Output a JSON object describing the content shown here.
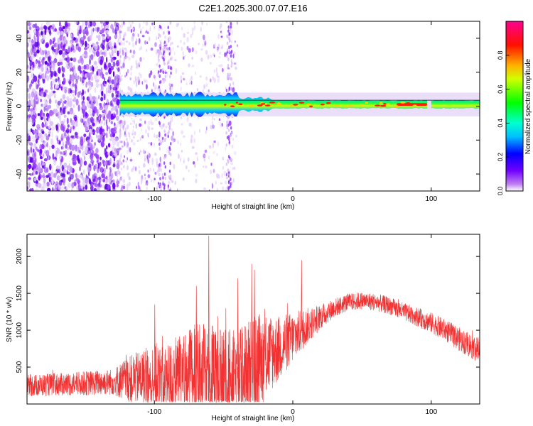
{
  "figure": {
    "title": "C2E1.2025.300.07.07.E16"
  },
  "chart_data": [
    {
      "type": "heatmap",
      "title": "C2E1.2025.300.07.07.E16",
      "xlabel": "Height of straight line (km)",
      "ylabel": "Frequency (Hz)",
      "xlim": [
        -192,
        135
      ],
      "ylim": [
        -50,
        50
      ],
      "xticks": [
        -100,
        0,
        100
      ],
      "yticks": [
        -40,
        -20,
        0,
        20,
        40
      ],
      "grid": false,
      "colorbar": {
        "label": "Normalized spectral amplitude",
        "range": [
          0.0,
          1.0
        ],
        "ticks": [
          0.0,
          0.2,
          0.4,
          0.6,
          0.8
        ],
        "colormap": "gist_rainbow (purple→blue→cyan→green→yellow→orange→red→magenta)"
      },
      "features": {
        "noise_region_x": [
          -192,
          -125
        ],
        "scattered_noise_x": [
          -125,
          -40
        ],
        "band_start_x": -125,
        "band_center_hz": 1,
        "band_halfwidth_hz": 3,
        "horizontal_line_hz": 3.5,
        "gap_x": [
          97,
          100
        ],
        "peak_amplitude_segment_x": [
          75,
          97
        ]
      }
    },
    {
      "type": "line",
      "xlabel": "Height of straight line (km)",
      "ylabel": "SNR (10 * v/v)",
      "xlim": [
        -192,
        135
      ],
      "ylim": [
        0,
        2300
      ],
      "xticks": [
        -100,
        0,
        100
      ],
      "yticks": [
        500,
        1000,
        1500,
        2000
      ],
      "series_color": "#f03232",
      "envelope": {
        "x": [
          -192,
          -160,
          -130,
          -120,
          -100,
          -90,
          -70,
          -60,
          -40,
          -30,
          -20,
          -10,
          0,
          10,
          20,
          30,
          40,
          50,
          60,
          70,
          80,
          90,
          100,
          110,
          120,
          135
        ],
        "mean": [
          250,
          270,
          300,
          330,
          380,
          330,
          450,
          380,
          350,
          500,
          650,
          750,
          900,
          1050,
          1180,
          1300,
          1380,
          1400,
          1380,
          1330,
          1250,
          1180,
          1100,
          1000,
          880,
          720
        ],
        "spread": [
          150,
          160,
          180,
          300,
          450,
          500,
          650,
          700,
          650,
          700,
          600,
          450,
          350,
          250,
          170,
          130,
          120,
          120,
          120,
          120,
          120,
          130,
          140,
          150,
          160,
          180
        ]
      },
      "spikes": [
        {
          "x": -61,
          "y": 2280
        },
        {
          "x": -30,
          "y": 1900
        },
        {
          "x": 6,
          "y": 1950
        },
        {
          "x": -28,
          "y": 1820
        },
        {
          "x": -100,
          "y": 1350
        },
        {
          "x": -70,
          "y": 1600
        },
        {
          "x": -40,
          "y": 1700
        }
      ]
    }
  ]
}
